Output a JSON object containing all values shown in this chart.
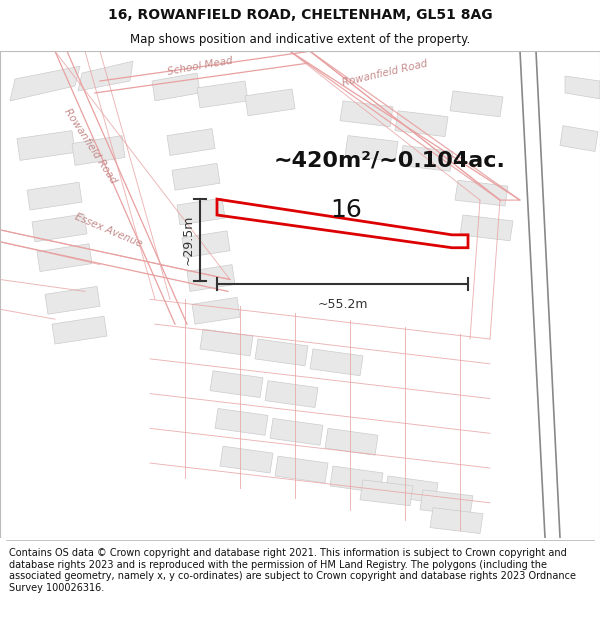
{
  "title_line1": "16, ROWANFIELD ROAD, CHELTENHAM, GL51 8AG",
  "title_line2": "Map shows position and indicative extent of the property.",
  "area_text": "~420m²/~0.104ac.",
  "label_16": "16",
  "dim_width": "~55.2m",
  "dim_height": "~29.5m",
  "footer_text": "Contains OS data © Crown copyright and database right 2021. This information is subject to Crown copyright and database rights 2023 and is reproduced with the permission of HM Land Registry. The polygons (including the associated geometry, namely x, y co-ordinates) are subject to Crown copyright and database rights 2023 Ordnance Survey 100026316.",
  "bg_color": "#ffffff",
  "map_bg": "#ffffff",
  "road_color": "#e8a0a0",
  "road_lw": 0.8,
  "building_fill": "#e8e8e8",
  "building_edge": "#cccccc",
  "parcel_stroke": "#dd0000",
  "parcel_lw": 2.0,
  "dim_color": "#333333",
  "text_color": "#111111",
  "footer_color": "#111111",
  "label_road_color": "#c08080",
  "gray_line_color": "#888888",
  "title_fontsize": 10,
  "subtitle_fontsize": 8.5,
  "area_fontsize": 16,
  "label_fontsize": 18,
  "footer_fontsize": 7.0,
  "dim_fontsize": 9
}
